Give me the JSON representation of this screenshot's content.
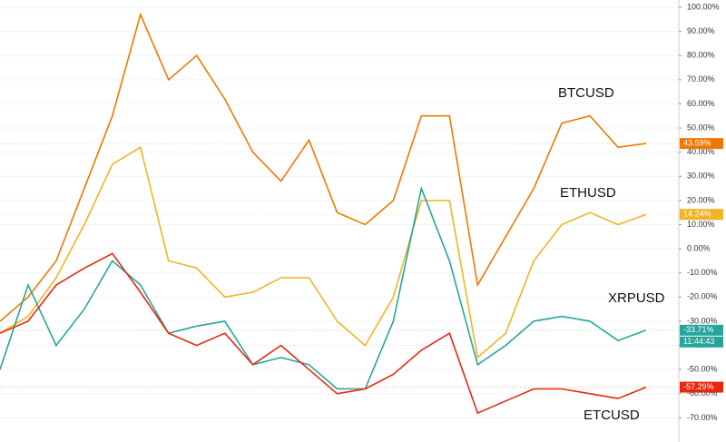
{
  "chart_data": {
    "type": "line",
    "ylim": [
      -80,
      103
    ],
    "yticks": [
      {
        "value": 100,
        "label": "100.00%"
      },
      {
        "value": 90,
        "label": "90.00%"
      },
      {
        "value": 80,
        "label": "80.00%"
      },
      {
        "value": 70,
        "label": "70.00%"
      },
      {
        "value": 60,
        "label": "60.00%"
      },
      {
        "value": 50,
        "label": "50.00%"
      },
      {
        "value": 40,
        "label": "40.00%"
      },
      {
        "value": 30,
        "label": "30.00%"
      },
      {
        "value": 20,
        "label": "20.00%"
      },
      {
        "value": 10,
        "label": "10.00%"
      },
      {
        "value": 0,
        "label": "0.00%"
      },
      {
        "value": -10,
        "label": "-10.00%"
      },
      {
        "value": -20,
        "label": "-20.00%"
      },
      {
        "value": -30,
        "label": "-30.00%"
      },
      {
        "value": -40,
        "label": "-40.00%"
      },
      {
        "value": -50,
        "label": "-50.00%"
      },
      {
        "value": -60,
        "label": "-60.00%"
      },
      {
        "value": -70,
        "label": "-70.00%"
      }
    ],
    "grid": true,
    "countdown": "11:44:43",
    "series": [
      {
        "name": "BTCUSD",
        "color": "#f07800",
        "values": [
          -30,
          -20,
          -5,
          25,
          55,
          97,
          70,
          80,
          62,
          40,
          28,
          45,
          15,
          10,
          20,
          55,
          55,
          -15,
          5,
          25,
          52,
          55,
          42,
          43.59
        ],
        "value_labels": [
          null,
          null,
          null,
          null,
          null,
          null,
          null,
          null,
          null,
          null,
          null,
          null,
          null,
          null,
          null,
          null,
          null,
          null,
          null,
          null,
          null,
          null,
          null,
          "43.59%"
        ]
      },
      {
        "name": "ETHUSD",
        "color": "#f2b423",
        "values": [
          -35,
          -28,
          -12,
          10,
          35,
          42,
          -5,
          -8,
          -20,
          -18,
          -12,
          -12,
          -30,
          -40,
          -20,
          20,
          20,
          -45,
          -35,
          -5,
          10,
          15,
          10,
          14.24
        ],
        "value_labels": [
          null,
          null,
          null,
          null,
          null,
          null,
          null,
          null,
          null,
          null,
          null,
          null,
          null,
          null,
          null,
          null,
          null,
          null,
          null,
          null,
          null,
          null,
          null,
          "14.24%"
        ]
      },
      {
        "name": "XRPUSD",
        "color": "#26a69a",
        "values": [
          -50,
          -15,
          -40,
          -25,
          -5,
          -15,
          -35,
          -32,
          -30,
          -48,
          -45,
          -48,
          -58,
          -58,
          -30,
          25,
          -5,
          -48,
          -40,
          -30,
          -28,
          -30,
          -38,
          -33.71
        ],
        "value_labels": [
          null,
          null,
          null,
          null,
          null,
          null,
          null,
          null,
          null,
          null,
          null,
          null,
          null,
          null,
          null,
          null,
          null,
          null,
          null,
          null,
          null,
          null,
          null,
          "-33.71%"
        ]
      },
      {
        "name": "ETCUSD",
        "color": "#e8280c",
        "values": [
          -35,
          -30,
          -15,
          -8,
          -2,
          -18,
          -35,
          -40,
          -35,
          -48,
          -40,
          -50,
          -60,
          -58,
          -52,
          -42,
          -35,
          -68,
          -63,
          -58,
          -58,
          -60,
          -62,
          -57.29
        ],
        "value_labels": [
          null,
          null,
          null,
          null,
          null,
          null,
          null,
          null,
          null,
          null,
          null,
          null,
          null,
          null,
          null,
          null,
          null,
          null,
          null,
          null,
          null,
          null,
          null,
          "-57.29%"
        ]
      }
    ]
  }
}
